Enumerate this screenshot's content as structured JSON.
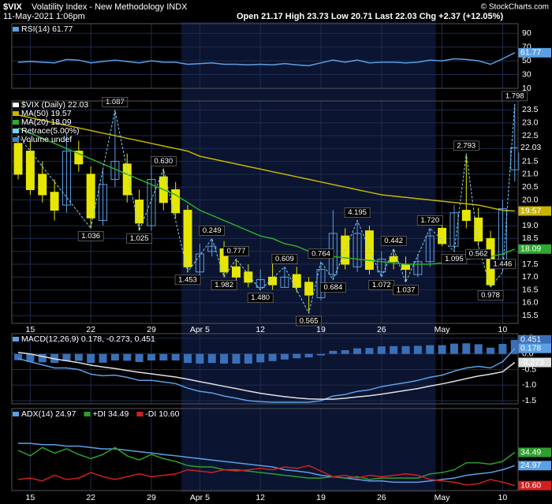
{
  "header": {
    "symbol": "$VIX",
    "name": "Volatility Index - New Methodology INDX",
    "date": "11-May-2021 1:06pm",
    "quote": "Open 21.17  High 23.73  Low 20.71  Last 22.03  Chg +2.37 (+12.05%)",
    "credit": "© StockCharts.com"
  },
  "chart_data": [
    {
      "type": "line",
      "ylim": [
        10,
        104
      ],
      "yticks": [
        10,
        30,
        50,
        70,
        90
      ],
      "series": [
        {
          "name": "RSI(14) 61.77",
          "color": "#5aa0e6",
          "values": [
            48,
            49,
            48,
            47,
            52,
            51,
            47,
            49,
            51,
            49,
            47,
            50,
            48,
            48,
            45,
            46,
            47,
            45,
            45,
            44,
            45,
            44,
            46,
            44,
            43,
            47,
            51,
            48,
            51,
            47,
            48,
            48,
            47,
            48,
            51,
            50,
            53,
            52,
            50,
            45,
            53,
            61.77
          ]
        }
      ]
    },
    {
      "type": "candlestick",
      "name": "$VIX (Daily) 22.03",
      "up_color": "#5aa0e6",
      "down_color": "#e6e600",
      "categories": [
        null,
        "15",
        null,
        null,
        null,
        null,
        "22",
        null,
        null,
        null,
        null,
        "29",
        null,
        null,
        null,
        "Apr 5",
        null,
        null,
        null,
        null,
        "12",
        null,
        null,
        null,
        null,
        "19",
        null,
        null,
        null,
        null,
        "26",
        null,
        null,
        null,
        null,
        "May",
        null,
        null,
        null,
        null,
        "10",
        null
      ],
      "open": [
        22.2,
        21.9,
        21.0,
        20.3,
        19.8,
        21.9,
        21.0,
        19.2,
        20.8,
        21.4,
        20.0,
        19.0,
        20.9,
        20.4,
        19.6,
        17.2,
        18.0,
        18.1,
        17.4,
        17.2,
        16.6,
        17.0,
        16.6,
        17.1,
        16.8,
        16.2,
        17.1,
        18.6,
        17.4,
        18.8,
        17.2,
        17.8,
        17.5,
        17.1,
        17.6,
        18.9,
        18.2,
        19.6,
        19.3,
        18.5,
        17.5,
        21.17
      ],
      "high": [
        22.5,
        22.3,
        21.5,
        20.8,
        22.6,
        22.3,
        21.3,
        21.2,
        23.5,
        21.8,
        20.4,
        21.3,
        21.2,
        20.7,
        19.8,
        18.3,
        18.5,
        18.4,
        17.7,
        17.5,
        17.3,
        17.6,
        17.4,
        17.4,
        17.0,
        17.6,
        19.6,
        18.9,
        19.2,
        19.0,
        18.0,
        18.1,
        17.8,
        17.9,
        18.9,
        19.2,
        19.8,
        21.8,
        19.7,
        18.8,
        20.0,
        23.73
      ],
      "low": [
        20.8,
        20.2,
        19.9,
        19.2,
        19.5,
        21.1,
        18.9,
        19.0,
        20.5,
        19.9,
        18.8,
        18.8,
        19.6,
        19.3,
        17.2,
        17.0,
        17.8,
        17.0,
        16.8,
        16.6,
        16.5,
        16.5,
        16.6,
        16.4,
        15.6,
        16.1,
        16.9,
        17.3,
        17.2,
        17.1,
        17.0,
        17.3,
        16.8,
        17.0,
        17.4,
        18.2,
        18.0,
        18.9,
        18.2,
        16.6,
        17.2,
        20.71
      ],
      "close": [
        21.0,
        20.4,
        20.2,
        19.6,
        21.9,
        21.4,
        19.3,
        20.6,
        21.5,
        20.2,
        19.1,
        20.8,
        19.9,
        19.5,
        17.4,
        17.9,
        18.2,
        17.2,
        17.0,
        16.8,
        16.9,
        16.7,
        17.0,
        16.6,
        16.3,
        17.3,
        18.7,
        17.5,
        18.7,
        17.3,
        17.7,
        17.6,
        17.3,
        17.6,
        18.6,
        18.3,
        19.5,
        19.2,
        18.4,
        16.7,
        19.66,
        22.03
      ],
      "series": [
        {
          "name": "MA(50) 19.57",
          "color": "#c8b400",
          "values": [
            23.3,
            23.2,
            23.1,
            23.0,
            22.9,
            22.8,
            22.7,
            22.6,
            22.5,
            22.4,
            22.3,
            22.2,
            22.1,
            22.0,
            21.9,
            21.7,
            21.6,
            21.5,
            21.4,
            21.3,
            21.2,
            21.1,
            21.0,
            20.9,
            20.8,
            20.7,
            20.6,
            20.5,
            20.4,
            20.3,
            20.2,
            20.15,
            20.1,
            20.05,
            20.0,
            19.95,
            19.9,
            19.85,
            19.8,
            19.7,
            19.6,
            19.57
          ]
        },
        {
          "name": "MA(20) 18.09",
          "color": "#2eaa2e",
          "values": [
            22.8,
            22.6,
            22.4,
            22.2,
            22.0,
            21.8,
            21.6,
            21.4,
            21.2,
            21.0,
            20.8,
            20.6,
            20.4,
            20.2,
            19.9,
            19.6,
            19.4,
            19.2,
            19.0,
            18.8,
            18.6,
            18.5,
            18.3,
            18.2,
            18.0,
            17.9,
            17.8,
            17.75,
            17.7,
            17.65,
            17.6,
            17.55,
            17.5,
            17.5,
            17.5,
            17.55,
            17.6,
            17.7,
            17.75,
            17.8,
            17.9,
            18.09
          ]
        }
      ],
      "retrace": {
        "name": "Retrace(5.00%)",
        "color": "#7fd0f0",
        "x": [
          0,
          6,
          8,
          10,
          12,
          14,
          16,
          17,
          18,
          20,
          22,
          24,
          25,
          26,
          28,
          30,
          31,
          32,
          34,
          36,
          37,
          38,
          39,
          40,
          41
        ],
        "values": [
          22.5,
          18.9,
          23.5,
          18.8,
          21.2,
          17.2,
          18.5,
          17.0,
          17.7,
          16.5,
          17.4,
          15.6,
          17.6,
          16.9,
          19.2,
          17.0,
          18.1,
          16.8,
          18.9,
          18.0,
          21.8,
          18.2,
          16.6,
          17.2,
          23.73
        ],
        "labels": [
          null,
          "1.036",
          "1.087",
          "1.025",
          "0.630",
          "1.453",
          "0.249",
          "1.982",
          "0.777",
          "1.480",
          "0.609",
          "0.565",
          "0.764",
          "0.684",
          "4.195",
          "1.072",
          "0.442",
          "1.037",
          "1.720",
          "1.095",
          "2.793",
          "0.562",
          "0.978",
          "1.446",
          "1.798"
        ]
      },
      "volume": {
        "name": "Volume undef",
        "color": "#3d7fd0"
      },
      "ylim": [
        15.2,
        23.85
      ],
      "yticks": [
        15.5,
        {
          "value": 16,
          "label": "16.0"
        },
        16.5,
        {
          "value": 17,
          "label": "17.0"
        },
        17.5,
        {
          "value": 18,
          "label": "18.0"
        },
        18.5,
        {
          "value": 19,
          "label": "19.0"
        },
        19.5,
        {
          "value": 20,
          "label": "20.0"
        },
        20.5,
        {
          "value": 21,
          "label": "21.0"
        },
        21.5,
        {
          "value": 22,
          "label": "22.0"
        },
        22.5,
        {
          "value": 23,
          "label": "23.0"
        },
        23.5
      ]
    },
    {
      "type": "macd",
      "label": "MACD(12,26,9) 0.178, -0.273, 0.451",
      "ylim": [
        -1.6,
        0.65
      ],
      "yticks": [
        -1.5,
        {
          "value": -1,
          "label": "-1.0"
        },
        -0.5,
        {
          "value": 0,
          "label": "0.0"
        },
        0.5
      ],
      "histogram": {
        "color": "#3a70b8",
        "values": [
          -0.2,
          -0.25,
          -0.27,
          -0.29,
          -0.23,
          -0.22,
          -0.29,
          -0.28,
          -0.21,
          -0.22,
          -0.26,
          -0.21,
          -0.21,
          -0.21,
          -0.29,
          -0.31,
          -0.29,
          -0.31,
          -0.31,
          -0.31,
          -0.27,
          -0.23,
          -0.18,
          -0.14,
          -0.11,
          -0.05,
          0.1,
          0.12,
          0.18,
          0.19,
          0.24,
          0.25,
          0.25,
          0.26,
          0.28,
          0.28,
          0.33,
          0.34,
          0.31,
          0.2,
          0.32,
          0.451
        ]
      },
      "series": [
        {
          "color": "#5aa0e6",
          "values": [
            -0.15,
            -0.25,
            -0.35,
            -0.45,
            -0.45,
            -0.5,
            -0.65,
            -0.7,
            -0.68,
            -0.75,
            -0.85,
            -0.85,
            -0.9,
            -0.95,
            -1.1,
            -1.2,
            -1.25,
            -1.35,
            -1.42,
            -1.5,
            -1.53,
            -1.55,
            -1.55,
            -1.55,
            -1.55,
            -1.5,
            -1.35,
            -1.3,
            -1.2,
            -1.15,
            -1.05,
            -0.98,
            -0.92,
            -0.85,
            -0.75,
            -0.68,
            -0.55,
            -0.45,
            -0.4,
            -0.45,
            -0.25,
            0.178
          ]
        },
        {
          "color": "#e0e0e0",
          "values": [
            0.05,
            0.0,
            -0.08,
            -0.16,
            -0.22,
            -0.28,
            -0.36,
            -0.42,
            -0.47,
            -0.53,
            -0.59,
            -0.64,
            -0.69,
            -0.74,
            -0.81,
            -0.89,
            -0.96,
            -1.04,
            -1.11,
            -1.19,
            -1.26,
            -1.32,
            -1.37,
            -1.41,
            -1.44,
            -1.45,
            -1.45,
            -1.42,
            -1.38,
            -1.34,
            -1.29,
            -1.23,
            -1.17,
            -1.11,
            -1.03,
            -0.96,
            -0.88,
            -0.79,
            -0.71,
            -0.65,
            -0.57,
            -0.273
          ]
        }
      ]
    },
    {
      "type": "line",
      "ylim": [
        7,
        66
      ],
      "series": [
        {
          "name": "ADX(14) 24.97",
          "color": "#5aa0e6",
          "values": [
            41,
            41,
            40,
            40,
            39,
            39,
            38,
            37,
            37,
            36,
            35,
            34,
            33,
            32,
            31,
            30,
            29,
            28,
            27,
            26,
            25,
            24,
            22,
            21,
            20,
            18,
            17,
            16,
            15,
            14,
            14,
            13,
            13,
            13,
            14,
            15,
            16,
            18,
            19,
            20,
            22,
            24.97
          ]
        },
        {
          "name": "+DI 34.49",
          "color": "#2e9e2e",
          "values": [
            36,
            32,
            38,
            34,
            37,
            33,
            30,
            33,
            38,
            32,
            29,
            33,
            30,
            28,
            25,
            24,
            24,
            22,
            22,
            21,
            20,
            19,
            18,
            17,
            16,
            16,
            17,
            16,
            17,
            15,
            16,
            16,
            16,
            16,
            19,
            20,
            22,
            27,
            27,
            26,
            28,
            34.49
          ]
        },
        {
          "name": "-DI 10.60",
          "color": "#d02020",
          "values": [
            15,
            16,
            14,
            18,
            15,
            16,
            20,
            17,
            15,
            17,
            19,
            17,
            18,
            19,
            22,
            21,
            20,
            22,
            21,
            22,
            23,
            22,
            24,
            23,
            25,
            21,
            17,
            18,
            16,
            18,
            17,
            18,
            19,
            18,
            15,
            14,
            13,
            11,
            12,
            15,
            13,
            10.6
          ],
          "value_labels": [
            null,
            null,
            null,
            null,
            null,
            null,
            null,
            null,
            null,
            null,
            null,
            null,
            null,
            null,
            null,
            null,
            null,
            null,
            null,
            null,
            null,
            null,
            null,
            null,
            null,
            null,
            null,
            null,
            null,
            null,
            null,
            null,
            null,
            null,
            null,
            null,
            null,
            null,
            null,
            null,
            null,
            "10.60"
          ]
        }
      ]
    }
  ]
}
